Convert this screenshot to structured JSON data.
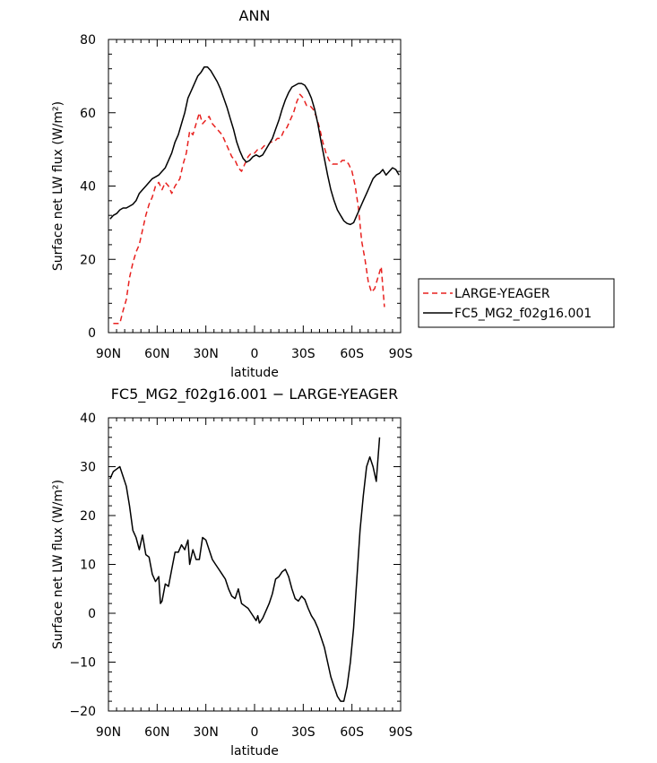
{
  "chart_data": [
    {
      "type": "line",
      "title": "ANN",
      "xlabel": "latitude",
      "ylabel": "Surface net LW flux (W/m²)",
      "x_ticks": [
        {
          "value": -90,
          "label": "90N"
        },
        {
          "value": -60,
          "label": "60N"
        },
        {
          "value": -30,
          "label": "30N"
        },
        {
          "value": 0,
          "label": "0"
        },
        {
          "value": 30,
          "label": "30S"
        },
        {
          "value": 60,
          "label": "60S"
        },
        {
          "value": 90,
          "label": "90S"
        }
      ],
      "xlim": [
        -90,
        90
      ],
      "ylim": [
        0,
        80
      ],
      "y_ticks": [
        0,
        20,
        40,
        60,
        80
      ],
      "legend_position": "right",
      "series": [
        {
          "name": "LARGE-YEAGER",
          "color": "#e8211f",
          "dash": "dashed",
          "points": [
            [
              -87,
              2.5
            ],
            [
              -83,
              2.5
            ],
            [
              -81,
              6
            ],
            [
              -79,
              9
            ],
            [
              -77,
              15
            ],
            [
              -75,
              19
            ],
            [
              -73,
              22
            ],
            [
              -71,
              24
            ],
            [
              -69,
              28
            ],
            [
              -67,
              32
            ],
            [
              -65,
              35
            ],
            [
              -63,
              37
            ],
            [
              -61,
              40
            ],
            [
              -59,
              41
            ],
            [
              -57,
              39
            ],
            [
              -55,
              41
            ],
            [
              -53,
              40
            ],
            [
              -51,
              38
            ],
            [
              -49,
              40
            ],
            [
              -46,
              42
            ],
            [
              -44,
              46
            ],
            [
              -42,
              49
            ],
            [
              -40,
              55
            ],
            [
              -38,
              54
            ],
            [
              -36,
              57
            ],
            [
              -34,
              60
            ],
            [
              -32,
              57
            ],
            [
              -30,
              58
            ],
            [
              -28,
              59
            ],
            [
              -26,
              57
            ],
            [
              -24,
              56
            ],
            [
              -22,
              55
            ],
            [
              -20,
              54
            ],
            [
              -18,
              52
            ],
            [
              -16,
              50
            ],
            [
              -14,
              48
            ],
            [
              -12,
              47
            ],
            [
              -10,
              45
            ],
            [
              -8,
              44
            ],
            [
              -6,
              46
            ],
            [
              -4,
              48
            ],
            [
              -2,
              49
            ],
            [
              0,
              49
            ],
            [
              2,
              50
            ],
            [
              4,
              50
            ],
            [
              6,
              51
            ],
            [
              8,
              51
            ],
            [
              10,
              52
            ],
            [
              12,
              52
            ],
            [
              14,
              53
            ],
            [
              16,
              53
            ],
            [
              18,
              55
            ],
            [
              20,
              56
            ],
            [
              22,
              58
            ],
            [
              24,
              60
            ],
            [
              26,
              63
            ],
            [
              28,
              65
            ],
            [
              30,
              64
            ],
            [
              32,
              62
            ],
            [
              34,
              62
            ],
            [
              36,
              61
            ],
            [
              38,
              59
            ],
            [
              40,
              56
            ],
            [
              42,
              52
            ],
            [
              44,
              49
            ],
            [
              46,
              47
            ],
            [
              48,
              46
            ],
            [
              50,
              46
            ],
            [
              52,
              46
            ],
            [
              54,
              47
            ],
            [
              56,
              47
            ],
            [
              58,
              46
            ],
            [
              60,
              44
            ],
            [
              62,
              40
            ],
            [
              64,
              34
            ],
            [
              66,
              25
            ],
            [
              68,
              20
            ],
            [
              70,
              14
            ],
            [
              72,
              11
            ],
            [
              74,
              12
            ],
            [
              76,
              15
            ],
            [
              78,
              18
            ],
            [
              80,
              7
            ]
          ]
        },
        {
          "name": "FC5_MG2_f02g16.001",
          "color": "#000000",
          "dash": "solid",
          "points": [
            [
              -89,
              31
            ],
            [
              -87,
              32
            ],
            [
              -85,
              32.5
            ],
            [
              -83,
              33.5
            ],
            [
              -81,
              34
            ],
            [
              -79,
              34
            ],
            [
              -77,
              34.5
            ],
            [
              -75,
              35
            ],
            [
              -73,
              36
            ],
            [
              -71,
              38
            ],
            [
              -69,
              39
            ],
            [
              -67,
              40
            ],
            [
              -65,
              41
            ],
            [
              -63,
              42
            ],
            [
              -61,
              42.5
            ],
            [
              -59,
              43
            ],
            [
              -57,
              44
            ],
            [
              -55,
              45
            ],
            [
              -53,
              47
            ],
            [
              -51,
              49
            ],
            [
              -49,
              52
            ],
            [
              -47,
              54
            ],
            [
              -45,
              57
            ],
            [
              -43,
              60
            ],
            [
              -41,
              64
            ],
            [
              -39,
              66
            ],
            [
              -37,
              68
            ],
            [
              -35,
              70
            ],
            [
              -33,
              71
            ],
            [
              -31,
              72.5
            ],
            [
              -29,
              72.5
            ],
            [
              -27,
              71.5
            ],
            [
              -25,
              70
            ],
            [
              -23,
              68.5
            ],
            [
              -21,
              66.5
            ],
            [
              -19,
              64
            ],
            [
              -17,
              61.5
            ],
            [
              -15,
              58.5
            ],
            [
              -13,
              55.5
            ],
            [
              -11,
              52
            ],
            [
              -9,
              49.5
            ],
            [
              -7,
              47.5
            ],
            [
              -5,
              46.5
            ],
            [
              -3,
              47
            ],
            [
              -1,
              48
            ],
            [
              1,
              48.5
            ],
            [
              3,
              48
            ],
            [
              5,
              48.5
            ],
            [
              7,
              50
            ],
            [
              9,
              51.5
            ],
            [
              11,
              53
            ],
            [
              13,
              55.5
            ],
            [
              15,
              58
            ],
            [
              17,
              61
            ],
            [
              19,
              63.5
            ],
            [
              21,
              65.5
            ],
            [
              23,
              67
            ],
            [
              25,
              67.5
            ],
            [
              27,
              68
            ],
            [
              29,
              68
            ],
            [
              31,
              67.5
            ],
            [
              33,
              66
            ],
            [
              35,
              64
            ],
            [
              37,
              61
            ],
            [
              39,
              57
            ],
            [
              41,
              52
            ],
            [
              43,
              47.5
            ],
            [
              45,
              43
            ],
            [
              47,
              39
            ],
            [
              49,
              36
            ],
            [
              51,
              33.5
            ],
            [
              53,
              32
            ],
            [
              55,
              30.5
            ],
            [
              57,
              29.8
            ],
            [
              59,
              29.5
            ],
            [
              61,
              30
            ],
            [
              63,
              32
            ],
            [
              65,
              34
            ],
            [
              67,
              36
            ],
            [
              69,
              38
            ],
            [
              71,
              40
            ],
            [
              73,
              42
            ],
            [
              75,
              43
            ],
            [
              77,
              43.5
            ],
            [
              79,
              44.5
            ],
            [
              81,
              43
            ],
            [
              83,
              44
            ],
            [
              85,
              45
            ],
            [
              87,
              44.5
            ],
            [
              89,
              43
            ]
          ]
        }
      ]
    },
    {
      "type": "line",
      "title": "FC5_MG2_f02g16.001 − LARGE-YEAGER",
      "xlabel": "latitude",
      "ylabel": "Surface net LW flux (W/m²)",
      "x_ticks": [
        {
          "value": -90,
          "label": "90N"
        },
        {
          "value": -60,
          "label": "60N"
        },
        {
          "value": -30,
          "label": "30N"
        },
        {
          "value": 0,
          "label": "0"
        },
        {
          "value": 30,
          "label": "30S"
        },
        {
          "value": 60,
          "label": "60S"
        },
        {
          "value": 90,
          "label": "90S"
        }
      ],
      "xlim": [
        -90,
        90
      ],
      "ylim": [
        -20,
        40
      ],
      "y_ticks": [
        -20,
        -10,
        0,
        10,
        20,
        30,
        40
      ],
      "series": [
        {
          "color": "#000000",
          "dash": "solid",
          "points": [
            [
              -89,
              27.5
            ],
            [
              -87,
              29
            ],
            [
              -85,
              29.5
            ],
            [
              -83,
              30
            ],
            [
              -81,
              28
            ],
            [
              -79,
              26
            ],
            [
              -77,
              22
            ],
            [
              -75,
              17
            ],
            [
              -73,
              15.5
            ],
            [
              -71,
              13
            ],
            [
              -69,
              16
            ],
            [
              -67,
              12
            ],
            [
              -65,
              11.5
            ],
            [
              -63,
              8
            ],
            [
              -61,
              6.5
            ],
            [
              -59,
              7.5
            ],
            [
              -58,
              2
            ],
            [
              -57,
              2.5
            ],
            [
              -55,
              6
            ],
            [
              -53,
              5.5
            ],
            [
              -51,
              9
            ],
            [
              -49,
              12.5
            ],
            [
              -47,
              12.5
            ],
            [
              -45,
              14
            ],
            [
              -43,
              13
            ],
            [
              -41,
              15
            ],
            [
              -40,
              10
            ],
            [
              -38,
              13
            ],
            [
              -36,
              11
            ],
            [
              -34,
              11
            ],
            [
              -32,
              15.5
            ],
            [
              -30,
              15
            ],
            [
              -28,
              13
            ],
            [
              -26,
              11
            ],
            [
              -24,
              10
            ],
            [
              -22,
              9
            ],
            [
              -20,
              8
            ],
            [
              -18,
              7
            ],
            [
              -16,
              5
            ],
            [
              -14,
              3.5
            ],
            [
              -12,
              3
            ],
            [
              -10,
              5
            ],
            [
              -8,
              2
            ],
            [
              -6,
              1.5
            ],
            [
              -4,
              1
            ],
            [
              -2,
              0
            ],
            [
              0,
              -1
            ],
            [
              1,
              -1.5
            ],
            [
              2,
              -0.5
            ],
            [
              3,
              -2
            ],
            [
              5,
              -1
            ],
            [
              7,
              0.5
            ],
            [
              9,
              2
            ],
            [
              11,
              4
            ],
            [
              13,
              7
            ],
            [
              15,
              7.5
            ],
            [
              17,
              8.5
            ],
            [
              19,
              9
            ],
            [
              21,
              7.5
            ],
            [
              23,
              5
            ],
            [
              25,
              3
            ],
            [
              27,
              2.5
            ],
            [
              29,
              3.5
            ],
            [
              31,
              2.8
            ],
            [
              33,
              1
            ],
            [
              35,
              -0.5
            ],
            [
              37,
              -1.5
            ],
            [
              39,
              -3
            ],
            [
              41,
              -5
            ],
            [
              43,
              -7
            ],
            [
              45,
              -10
            ],
            [
              47,
              -13
            ],
            [
              49,
              -15
            ],
            [
              51,
              -17
            ],
            [
              53,
              -18
            ],
            [
              55,
              -18
            ],
            [
              57,
              -15
            ],
            [
              59,
              -10
            ],
            [
              61,
              -3
            ],
            [
              63,
              7
            ],
            [
              65,
              17
            ],
            [
              67,
              24
            ],
            [
              69,
              30
            ],
            [
              71,
              32
            ],
            [
              73,
              30
            ],
            [
              75,
              27
            ],
            [
              77,
              36
            ]
          ]
        }
      ]
    }
  ]
}
